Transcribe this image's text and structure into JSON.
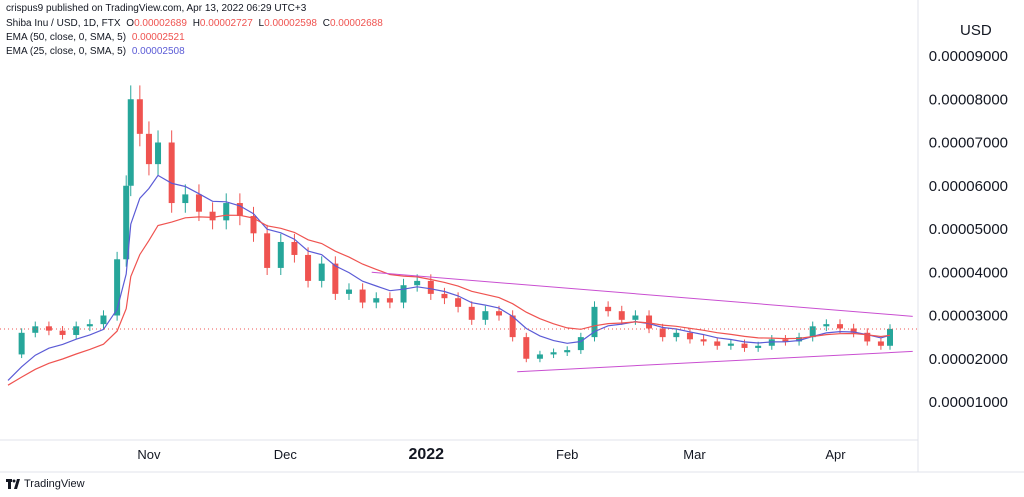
{
  "header": {
    "published": "crispus9 published on TradingView.com, Apr 13, 2022 06:29 UTC+3",
    "symbol": "Shiba Inu / USD, 1D, FTX",
    "ohlc": {
      "o_label": "O",
      "o": "0.00002689",
      "h_label": "H",
      "h": "0.00002727",
      "l_label": "L",
      "l": "0.00002598",
      "c_label": "C",
      "c": "0.00002688"
    },
    "ema50_label": "EMA (50, close, 0, SMA, 5)",
    "ema50_value": "0.00002521",
    "ema25_label": "EMA (25, close, 0, SMA, 5)",
    "ema25_value": "0.00002508"
  },
  "currency": "USD",
  "footer": {
    "brand": "TradingView"
  },
  "colors": {
    "up": "#26a69a",
    "down": "#ef5350",
    "ema50": "#ef5350",
    "ema25": "#5b5bd6",
    "trendline": "#c94fd1",
    "grid": "#f0f3fa"
  },
  "chart_data": {
    "type": "candlestick",
    "title": "Shiba Inu / USD, 1D, FTX",
    "ylabel": "USD",
    "ylim": [
      0.0,
      9.7e-06
    ],
    "yticks": [
      1e-05,
      2e-05,
      3e-05,
      4e-05,
      5e-05,
      6e-05,
      7e-05,
      8e-05,
      9e-05
    ],
    "ytick_labels": [
      "0.00001000",
      "0.00002000",
      "0.00003000",
      "0.00004000",
      "0.00005000",
      "0.00006000",
      "0.00007000",
      "0.00008000",
      "0.00009000"
    ],
    "x_start": "2021-10-01",
    "x_end": "2022-04-13",
    "xticks": [
      {
        "date": "2021-11-01",
        "label": "Nov"
      },
      {
        "date": "2021-12-01",
        "label": "Dec"
      },
      {
        "date": "2022-01-01",
        "label": "2022"
      },
      {
        "date": "2022-02-01",
        "label": "Feb"
      },
      {
        "date": "2022-03-01",
        "label": "Mar"
      },
      {
        "date": "2022-04-01",
        "label": "Apr"
      }
    ],
    "last_close": 2.688e-05,
    "close_series": [
      [
        "2021-10-01",
        2.1e-05
      ],
      [
        "2021-10-04",
        2.6e-05
      ],
      [
        "2021-10-07",
        2.75e-05
      ],
      [
        "2021-10-10",
        2.65e-05
      ],
      [
        "2021-10-13",
        2.55e-05
      ],
      [
        "2021-10-16",
        2.75e-05
      ],
      [
        "2021-10-19",
        2.8e-05
      ],
      [
        "2021-10-22",
        3e-05
      ],
      [
        "2021-10-25",
        4.3e-05
      ],
      [
        "2021-10-27",
        6e-05
      ],
      [
        "2021-10-28",
        8e-05
      ],
      [
        "2021-10-30",
        7.2e-05
      ],
      [
        "2021-11-01",
        6.5e-05
      ],
      [
        "2021-11-03",
        7e-05
      ],
      [
        "2021-11-06",
        5.6e-05
      ],
      [
        "2021-11-09",
        5.8e-05
      ],
      [
        "2021-11-12",
        5.4e-05
      ],
      [
        "2021-11-15",
        5.2e-05
      ],
      [
        "2021-11-18",
        5.6e-05
      ],
      [
        "2021-11-21",
        5.3e-05
      ],
      [
        "2021-11-24",
        4.9e-05
      ],
      [
        "2021-11-27",
        4.1e-05
      ],
      [
        "2021-11-30",
        4.7e-05
      ],
      [
        "2021-12-03",
        4.4e-05
      ],
      [
        "2021-12-06",
        3.8e-05
      ],
      [
        "2021-12-09",
        4.2e-05
      ],
      [
        "2021-12-12",
        3.5e-05
      ],
      [
        "2021-12-15",
        3.6e-05
      ],
      [
        "2021-12-18",
        3.3e-05
      ],
      [
        "2021-12-21",
        3.4e-05
      ],
      [
        "2021-12-24",
        3.3e-05
      ],
      [
        "2021-12-27",
        3.7e-05
      ],
      [
        "2021-12-30",
        3.8e-05
      ],
      [
        "2022-01-02",
        3.5e-05
      ],
      [
        "2022-01-05",
        3.4e-05
      ],
      [
        "2022-01-08",
        3.2e-05
      ],
      [
        "2022-01-11",
        2.9e-05
      ],
      [
        "2022-01-14",
        3.1e-05
      ],
      [
        "2022-01-17",
        3e-05
      ],
      [
        "2022-01-20",
        2.5e-05
      ],
      [
        "2022-01-23",
        2e-05
      ],
      [
        "2022-01-26",
        2.1e-05
      ],
      [
        "2022-01-29",
        2.15e-05
      ],
      [
        "2022-02-01",
        2.2e-05
      ],
      [
        "2022-02-04",
        2.5e-05
      ],
      [
        "2022-02-07",
        3.2e-05
      ],
      [
        "2022-02-10",
        3.1e-05
      ],
      [
        "2022-02-13",
        2.9e-05
      ],
      [
        "2022-02-16",
        3e-05
      ],
      [
        "2022-02-19",
        2.7e-05
      ],
      [
        "2022-02-22",
        2.5e-05
      ],
      [
        "2022-02-25",
        2.6e-05
      ],
      [
        "2022-02-28",
        2.45e-05
      ],
      [
        "2022-03-03",
        2.4e-05
      ],
      [
        "2022-03-06",
        2.3e-05
      ],
      [
        "2022-03-09",
        2.35e-05
      ],
      [
        "2022-03-12",
        2.25e-05
      ],
      [
        "2022-03-15",
        2.3e-05
      ],
      [
        "2022-03-18",
        2.45e-05
      ],
      [
        "2022-03-21",
        2.4e-05
      ],
      [
        "2022-03-24",
        2.5e-05
      ],
      [
        "2022-03-27",
        2.75e-05
      ],
      [
        "2022-03-30",
        2.8e-05
      ],
      [
        "2022-04-02",
        2.7e-05
      ],
      [
        "2022-04-05",
        2.6e-05
      ],
      [
        "2022-04-08",
        2.4e-05
      ],
      [
        "2022-04-11",
        2.3e-05
      ],
      [
        "2022-04-13",
        2.69e-05
      ]
    ],
    "series": [
      {
        "name": "EMA (50, close, 0, SMA, 5)",
        "last": 2.521e-05
      },
      {
        "name": "EMA (25, close, 0, SMA, 5)",
        "last": 2.508e-05
      }
    ]
  }
}
